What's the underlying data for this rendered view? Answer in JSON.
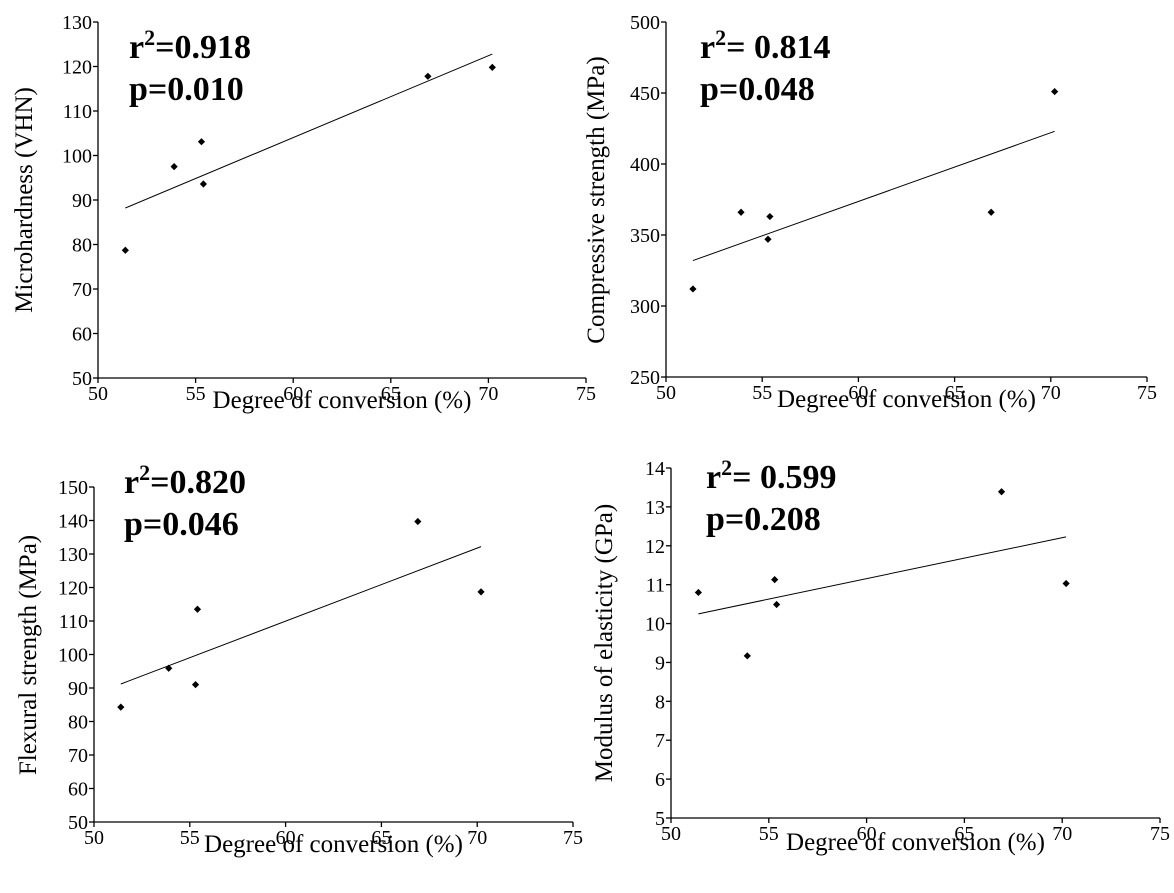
{
  "chart_data": [
    {
      "type": "scatter",
      "panel": "microhardness",
      "xlabel": "Degree of conversion (%)",
      "ylabel": "Microhardness (VHN)",
      "xlim": [
        50,
        75
      ],
      "ylim": [
        50,
        130
      ],
      "xticks": [
        50,
        55,
        60,
        65,
        70,
        75
      ],
      "yticks": [
        50,
        60,
        70,
        80,
        90,
        100,
        110,
        120,
        130
      ],
      "points": [
        {
          "x": 51.4,
          "y": 78.7
        },
        {
          "x": 53.9,
          "y": 97.5
        },
        {
          "x": 55.3,
          "y": 103.1
        },
        {
          "x": 55.4,
          "y": 93.6
        },
        {
          "x": 66.9,
          "y": 117.8
        },
        {
          "x": 70.2,
          "y": 119.8
        }
      ],
      "trendline": [
        {
          "x": 51.4,
          "y": 88.2
        },
        {
          "x": 70.2,
          "y": 122.8
        }
      ],
      "stats": {
        "r_prefix": "r",
        "r_sup": "2",
        "r_value": "=0.918",
        "p_text": "p=0.010"
      },
      "grid": false
    },
    {
      "type": "scatter",
      "panel": "compressive-strength",
      "xlabel": "Degree of conversion (%)",
      "ylabel": "Compressive strength (MPa)",
      "xlim": [
        50,
        75
      ],
      "ylim": [
        250,
        500
      ],
      "xticks": [
        50,
        55,
        60,
        65,
        70,
        75
      ],
      "yticks": [
        250,
        300,
        350,
        400,
        450,
        500
      ],
      "points": [
        {
          "x": 51.4,
          "y": 312
        },
        {
          "x": 53.9,
          "y": 366
        },
        {
          "x": 55.3,
          "y": 347
        },
        {
          "x": 55.4,
          "y": 363
        },
        {
          "x": 66.9,
          "y": 366
        },
        {
          "x": 70.2,
          "y": 451
        }
      ],
      "trendline": [
        {
          "x": 51.4,
          "y": 332
        },
        {
          "x": 70.2,
          "y": 423
        }
      ],
      "stats": {
        "r_prefix": "r",
        "r_sup": "2",
        "r_value": "= 0.814",
        "p_text": "p=0.048"
      },
      "grid": false
    },
    {
      "type": "scatter",
      "panel": "flexural-strength",
      "xlabel": "Degree of conversion (%)",
      "ylabel": "Flexural strength (MPa)",
      "xlim": [
        50,
        75
      ],
      "ylim": [
        50,
        150
      ],
      "xticks": [
        50,
        55,
        60,
        65,
        70,
        75
      ],
      "yticks": [
        50,
        60,
        70,
        80,
        90,
        100,
        110,
        120,
        130,
        140,
        150
      ],
      "points": [
        {
          "x": 51.4,
          "y": 84.3
        },
        {
          "x": 53.9,
          "y": 95.9
        },
        {
          "x": 55.3,
          "y": 91.0
        },
        {
          "x": 55.4,
          "y": 113.5
        },
        {
          "x": 66.9,
          "y": 139.7
        },
        {
          "x": 70.2,
          "y": 118.7
        }
      ],
      "trendline": [
        {
          "x": 51.4,
          "y": 91.2
        },
        {
          "x": 70.2,
          "y": 132.2
        }
      ],
      "stats": {
        "r_prefix": "r",
        "r_sup": "2",
        "r_value": "=0.820",
        "p_text": "p=0.046"
      },
      "grid": false
    },
    {
      "type": "scatter",
      "panel": "modulus-of-elasticity",
      "xlabel": "Degree of conversion (%)",
      "ylabel": "Modulus of elasticity (GPa)",
      "xlim": [
        50,
        75
      ],
      "ylim": [
        5,
        14
      ],
      "xticks": [
        50,
        55,
        60,
        65,
        70,
        75
      ],
      "yticks": [
        5,
        6,
        7,
        8,
        9,
        10,
        11,
        12,
        13,
        14
      ],
      "points": [
        {
          "x": 51.4,
          "y": 10.8
        },
        {
          "x": 53.9,
          "y": 9.17
        },
        {
          "x": 55.3,
          "y": 11.13
        },
        {
          "x": 55.4,
          "y": 10.49
        },
        {
          "x": 66.9,
          "y": 13.39
        },
        {
          "x": 70.2,
          "y": 11.03
        }
      ],
      "trendline": [
        {
          "x": 51.4,
          "y": 10.25
        },
        {
          "x": 70.2,
          "y": 12.23
        }
      ],
      "stats": {
        "r_prefix": "r",
        "r_sup": "2",
        "r_value": "= 0.599",
        "p_text": "p=0.208"
      },
      "grid": false
    }
  ]
}
